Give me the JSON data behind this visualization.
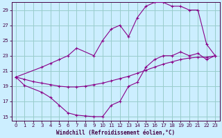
{
  "bg_color": "#cceeff",
  "line_color": "#880088",
  "grid_color": "#99cccc",
  "xlabel": "Windchill (Refroidissement éolien,°C)",
  "xlim": [
    -0.5,
    23.5
  ],
  "ylim": [
    14.5,
    30.0
  ],
  "yticks": [
    15,
    17,
    19,
    21,
    23,
    25,
    27,
    29
  ],
  "xticks": [
    0,
    1,
    2,
    3,
    4,
    5,
    6,
    7,
    8,
    9,
    10,
    11,
    12,
    13,
    14,
    15,
    16,
    17,
    18,
    19,
    20,
    21,
    22,
    23
  ],
  "line1_x": [
    0,
    1,
    2,
    3,
    4,
    5,
    6,
    7,
    8,
    9,
    10,
    11,
    12,
    13,
    14,
    15,
    16,
    17,
    18,
    19,
    20,
    21,
    22,
    23
  ],
  "line1_y": [
    20.2,
    19.9,
    19.6,
    19.4,
    19.2,
    19.0,
    18.9,
    18.9,
    19.0,
    19.2,
    19.4,
    19.7,
    20.0,
    20.3,
    20.7,
    21.1,
    21.5,
    21.9,
    22.2,
    22.5,
    22.7,
    22.8,
    22.8,
    23.0
  ],
  "line2_x": [
    0,
    1,
    3,
    4,
    5,
    6,
    7,
    8,
    9,
    10,
    11,
    12,
    13,
    14,
    15,
    16,
    17,
    18,
    19,
    20,
    21,
    22,
    23
  ],
  "line2_y": [
    20.2,
    19.1,
    18.2,
    17.5,
    16.5,
    15.5,
    15.2,
    15.1,
    15.0,
    15.0,
    16.5,
    17.0,
    19.0,
    19.5,
    21.5,
    22.5,
    23.0,
    23.0,
    23.5,
    23.0,
    23.3,
    22.5,
    23.0
  ],
  "line3_x": [
    0,
    3,
    4,
    5,
    6,
    7,
    9,
    10,
    11,
    12,
    13,
    14,
    15,
    16,
    17,
    18,
    19,
    20,
    21,
    22,
    23
  ],
  "line3_y": [
    20.2,
    21.5,
    22.0,
    22.5,
    23.0,
    24.0,
    23.0,
    25.0,
    26.5,
    27.0,
    25.5,
    28.0,
    29.5,
    30.0,
    30.0,
    29.5,
    29.5,
    29.0,
    29.0,
    24.5,
    23.0
  ]
}
